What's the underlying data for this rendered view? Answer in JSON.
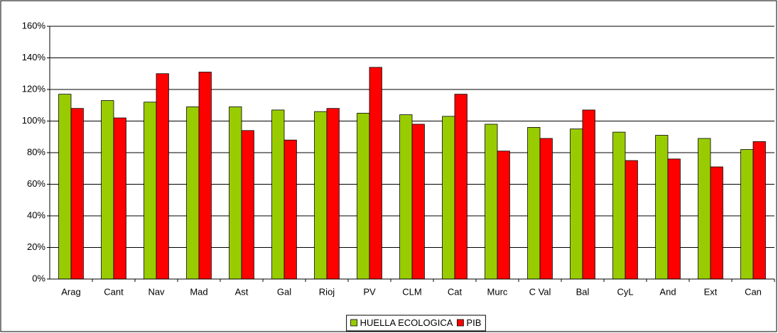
{
  "chart_data": {
    "type": "bar",
    "categories": [
      "Arag",
      "Cant",
      "Nav",
      "Mad",
      "Ast",
      "Gal",
      "Rioj",
      "PV",
      "CLM",
      "Cat",
      "Murc",
      "C Val",
      "Bal",
      "CyL",
      "And",
      "Ext",
      "Can"
    ],
    "series": [
      {
        "name": "HUELLA ECOLOGICA",
        "color": "#99cc00",
        "values": [
          117,
          113,
          112,
          109,
          109,
          107,
          106,
          105,
          104,
          103,
          98,
          96,
          95,
          93,
          91,
          89,
          82
        ]
      },
      {
        "name": "PIB",
        "color": "#ff0000",
        "values": [
          108,
          102,
          130,
          131,
          94,
          88,
          108,
          134,
          98,
          117,
          81,
          89,
          107,
          75,
          76,
          71,
          87
        ]
      }
    ],
    "ylim": [
      0,
      160
    ],
    "yticks": [
      {
        "value": 0,
        "label": "0%"
      },
      {
        "value": 20,
        "label": "20%"
      },
      {
        "value": 40,
        "label": "40%"
      },
      {
        "value": 60,
        "label": "60%"
      },
      {
        "value": 80,
        "label": "80%"
      },
      {
        "value": 100,
        "label": "100%"
      },
      {
        "value": 120,
        "label": "120%"
      },
      {
        "value": 140,
        "label": "140%"
      },
      {
        "value": 160,
        "label": "160%"
      }
    ],
    "grid": true,
    "legend": "bottom"
  }
}
